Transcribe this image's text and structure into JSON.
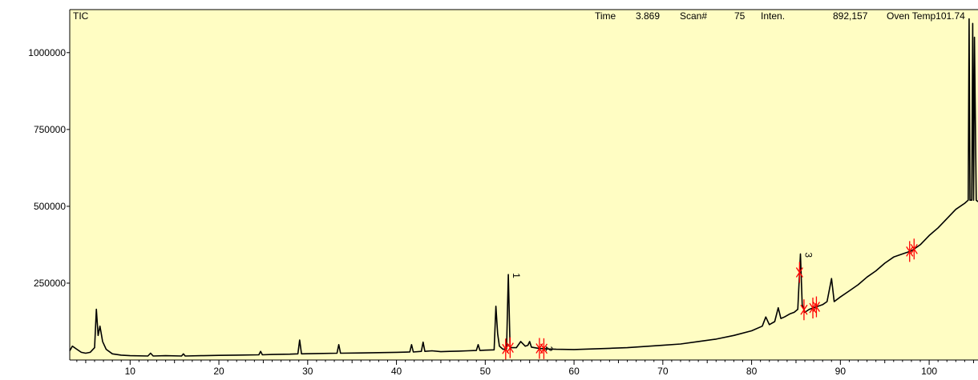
{
  "header": {
    "signal": "TIC",
    "time_label": "Time",
    "time_value": "3.869",
    "scan_label": "Scan#",
    "scan_value": "75",
    "inten_label": "Inten.",
    "inten_value": "892,157",
    "oven_label": "Oven Temp",
    "oven_value": "101.74"
  },
  "colors": {
    "plot_bg": "#fffdc3",
    "trace": "#000000",
    "marker": "#ff0000",
    "axis": "#000000"
  },
  "chart_data": {
    "type": "line",
    "title": "",
    "xlabel": "",
    "ylabel": "",
    "xlim": [
      3.2,
      105.5
    ],
    "ylim": [
      0,
      1140000
    ],
    "grid": false,
    "x_ticks": [
      10,
      20,
      30,
      40,
      50,
      60,
      70,
      80,
      90,
      100
    ],
    "x_tick_labels": [
      "10",
      "20",
      "30",
      "40",
      "50",
      "60",
      "70",
      "80",
      "90",
      "100"
    ],
    "y_ticks": [
      250000,
      500000,
      750000,
      1000000
    ],
    "y_tick_labels": [
      "250000",
      "500000",
      "750000",
      "1000000"
    ],
    "series": [
      {
        "x": [
          3.2,
          3.5,
          4.0,
          4.5,
          5.0,
          5.5,
          6.0,
          6.2,
          6.4,
          6.6,
          6.9,
          7.3,
          8.0,
          9.0,
          10.0,
          12.0,
          12.3,
          12.6,
          14.0,
          15.8,
          16.0,
          16.2,
          18.0,
          20.0,
          22.0,
          24.5,
          24.7,
          24.9,
          26.0,
          28.0,
          28.9,
          29.1,
          29.3,
          31.0,
          33.3,
          33.5,
          33.7,
          36.0,
          38.0,
          40.0,
          41.5,
          41.7,
          41.9,
          42.8,
          43.0,
          43.2,
          44.0,
          45.0,
          46.0,
          47.0,
          48.0,
          49.0,
          49.2,
          49.4,
          50.0,
          51.0,
          51.2,
          51.4,
          51.6,
          52.0,
          52.4,
          52.6,
          52.8,
          53.5,
          54.0,
          54.5,
          54.8,
          55.0,
          55.2,
          56.0,
          57.0,
          58.0,
          60.0,
          62.0,
          64.0,
          66.0,
          68.0,
          70.0,
          72.0,
          74.0,
          76.0,
          78.0,
          80.0,
          81.2,
          81.6,
          82.0,
          82.6,
          83.0,
          83.3,
          83.7,
          84.3,
          84.8,
          85.2,
          85.5,
          85.7,
          86.0,
          86.5,
          87.0,
          87.5,
          88.0,
          88.5,
          89.0,
          89.3,
          90.0,
          91.0,
          92.0,
          93.0,
          94.0,
          95.0,
          96.0,
          97.0,
          98.0,
          99.0,
          100.0,
          101.0,
          102.0,
          103.0,
          104.0,
          104.4,
          104.5,
          104.6,
          104.8,
          104.9,
          105.0,
          105.1,
          105.3,
          105.5
        ],
        "y": [
          30000,
          45000,
          35000,
          25000,
          22000,
          25000,
          40000,
          165000,
          80000,
          110000,
          60000,
          35000,
          20000,
          16000,
          14000,
          13000,
          22000,
          13000,
          14000,
          13000,
          20000,
          13000,
          14000,
          15000,
          16000,
          17000,
          28000,
          17000,
          18000,
          19000,
          20000,
          65000,
          20000,
          21000,
          22000,
          50000,
          22000,
          23000,
          24000,
          25000,
          26000,
          50000,
          26000,
          28000,
          58000,
          28000,
          30000,
          27000,
          28000,
          29000,
          30000,
          31000,
          50000,
          31000,
          32000,
          33000,
          175000,
          85000,
          45000,
          35000,
          36000,
          278000,
          40000,
          40000,
          60000,
          45000,
          48000,
          60000,
          42000,
          38000,
          36000,
          35000,
          34000,
          36000,
          38000,
          40000,
          44000,
          48000,
          52000,
          60000,
          68000,
          80000,
          95000,
          110000,
          140000,
          115000,
          125000,
          170000,
          135000,
          140000,
          150000,
          155000,
          165000,
          345000,
          180000,
          155000,
          165000,
          170000,
          175000,
          180000,
          190000,
          265000,
          190000,
          205000,
          225000,
          245000,
          270000,
          290000,
          315000,
          335000,
          345000,
          355000,
          375000,
          405000,
          430000,
          460000,
          490000,
          510000,
          520000,
          1110000,
          520000,
          520000,
          1095000,
          520000,
          1050000,
          520000,
          515000
        ]
      }
    ],
    "peaks": [
      {
        "label": "1",
        "x": 52.6,
        "y": 278000
      },
      {
        "label": "2",
        "x": 56.3,
        "y": 40000
      },
      {
        "label": "3",
        "x": 85.5,
        "y": 345000
      }
    ],
    "integration_markers_x": [
      52.3,
      52.8,
      56.1,
      56.6,
      85.4,
      85.9,
      86.9,
      87.3,
      97.8,
      98.3
    ]
  }
}
